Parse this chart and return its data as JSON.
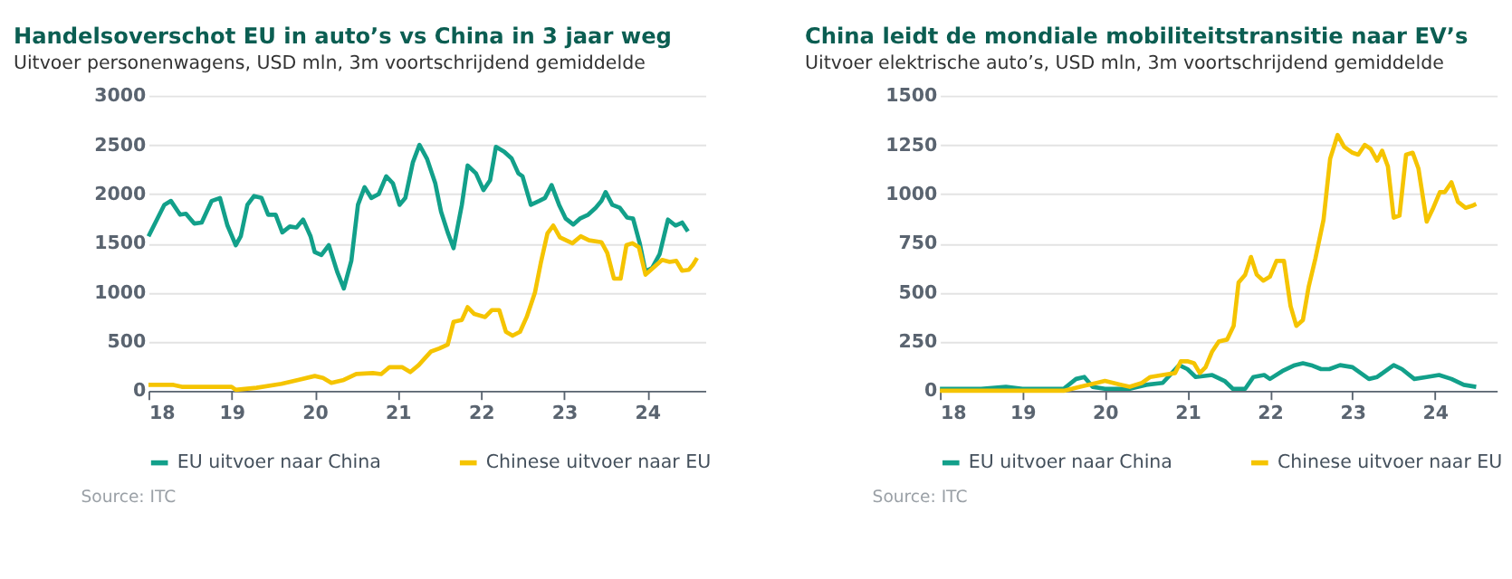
{
  "chart_data": [
    {
      "type": "line",
      "title": "Handelsoverschot EU in auto’s vs China in 3 jaar weg",
      "subtitle": "Uitvoer personenwagens, USD mln, 3m voortschrijdend gemiddelde",
      "xlim": [
        18,
        24.7
      ],
      "xticks": [
        18,
        19,
        20,
        21,
        22,
        23,
        24
      ],
      "ylim": [
        0,
        3000
      ],
      "yticks": [
        0,
        500,
        1000,
        1500,
        2000,
        2500,
        3000
      ],
      "grid": "y",
      "legend": "bottom",
      "annotations": [
        "Source: ITC"
      ],
      "series": [
        {
          "name": "EU uitvoer naar China",
          "color": "#12a08a",
          "x": [
            18.0,
            18.19,
            18.27,
            18.38,
            18.45,
            18.55,
            18.64,
            18.76,
            18.86,
            18.95,
            19.05,
            19.11,
            19.19,
            19.27,
            19.36,
            19.44,
            19.53,
            19.61,
            19.7,
            19.78,
            19.86,
            19.95,
            20.0,
            20.08,
            20.17,
            20.27,
            20.35,
            20.44,
            20.52,
            20.6,
            20.68,
            20.77,
            20.86,
            20.94,
            21.02,
            21.09,
            21.18,
            21.26,
            21.35,
            21.45,
            21.52,
            21.6,
            21.67,
            21.77,
            21.84,
            21.94,
            22.03,
            22.11,
            22.18,
            22.28,
            22.37,
            22.45,
            22.5,
            22.6,
            22.7,
            22.77,
            22.85,
            22.94,
            23.02,
            23.11,
            23.19,
            23.29,
            23.38,
            23.45,
            23.5,
            23.58,
            23.67,
            23.76,
            23.83,
            23.91,
            23.98,
            24.06,
            24.15,
            24.25,
            24.34,
            24.42,
            24.49
          ],
          "values": [
            1570,
            1890,
            1930,
            1790,
            1800,
            1700,
            1710,
            1930,
            1960,
            1680,
            1480,
            1570,
            1890,
            1980,
            1960,
            1790,
            1790,
            1610,
            1670,
            1660,
            1740,
            1570,
            1410,
            1380,
            1480,
            1210,
            1040,
            1320,
            1890,
            2070,
            1960,
            2000,
            2180,
            2110,
            1890,
            1960,
            2320,
            2500,
            2360,
            2110,
            1820,
            1610,
            1450,
            1890,
            2290,
            2210,
            2040,
            2140,
            2480,
            2430,
            2360,
            2210,
            2180,
            1890,
            1930,
            1960,
            2090,
            1890,
            1750,
            1690,
            1750,
            1790,
            1860,
            1930,
            2020,
            1890,
            1860,
            1760,
            1750,
            1500,
            1210,
            1250,
            1390,
            1740,
            1680,
            1710,
            1620
          ]
        },
        {
          "name": "Chinese uitvoer naar EU",
          "color": "#f5c400",
          "x": [
            18.0,
            18.3,
            18.4,
            18.6,
            19.0,
            19.05,
            19.3,
            19.6,
            19.8,
            20.0,
            20.1,
            20.2,
            20.35,
            20.5,
            20.7,
            20.8,
            20.9,
            21.05,
            21.15,
            21.25,
            21.4,
            21.5,
            21.6,
            21.67,
            21.77,
            21.84,
            21.92,
            22.05,
            22.13,
            22.22,
            22.3,
            22.38,
            22.47,
            22.55,
            22.65,
            22.72,
            22.8,
            22.87,
            22.95,
            23.1,
            23.2,
            23.3,
            23.45,
            23.52,
            23.6,
            23.68,
            23.75,
            23.82,
            23.9,
            23.98,
            24.1,
            24.18,
            24.27,
            24.35,
            24.42,
            24.5,
            24.55,
            24.6
          ],
          "values": [
            60,
            60,
            40,
            40,
            40,
            10,
            30,
            70,
            110,
            150,
            130,
            80,
            110,
            170,
            180,
            170,
            240,
            240,
            190,
            260,
            400,
            430,
            470,
            700,
            720,
            850,
            780,
            750,
            820,
            820,
            600,
            560,
            600,
            750,
            1000,
            1300,
            1600,
            1680,
            1560,
            1500,
            1570,
            1530,
            1510,
            1400,
            1140,
            1140,
            1480,
            1500,
            1460,
            1180,
            1270,
            1330,
            1310,
            1320,
            1220,
            1230,
            1280,
            1350
          ]
        }
      ]
    },
    {
      "type": "line",
      "title": "China leidt de mondiale mobiliteitstransitie naar EV’s",
      "subtitle": "Uitvoer elektrische auto’s, USD mln, 3m voortschrijdend gemiddelde",
      "xlim": [
        18,
        24.75
      ],
      "xticks": [
        18,
        19,
        20,
        21,
        22,
        23,
        24
      ],
      "ylim": [
        0,
        1500
      ],
      "yticks": [
        0,
        250,
        500,
        750,
        1000,
        1250,
        1500
      ],
      "grid": "y",
      "legend": "bottom",
      "annotations": [
        "Source: ITC"
      ],
      "series": [
        {
          "name": "EU uitvoer naar China",
          "color": "#12a08a",
          "x": [
            18.0,
            18.5,
            18.8,
            19.0,
            19.5,
            19.65,
            19.75,
            19.85,
            20.0,
            20.3,
            20.5,
            20.7,
            20.9,
            21.0,
            21.1,
            21.3,
            21.45,
            21.55,
            21.7,
            21.8,
            21.93,
            22.0,
            22.15,
            22.3,
            22.4,
            22.5,
            22.62,
            22.72,
            22.85,
            23.0,
            23.1,
            23.2,
            23.3,
            23.5,
            23.6,
            23.75,
            23.9,
            24.05,
            24.2,
            24.35,
            24.5
          ],
          "values": [
            10,
            10,
            20,
            10,
            10,
            60,
            70,
            20,
            10,
            10,
            30,
            40,
            130,
            110,
            70,
            80,
            50,
            10,
            10,
            70,
            80,
            60,
            100,
            130,
            140,
            130,
            110,
            110,
            130,
            120,
            90,
            60,
            70,
            130,
            110,
            60,
            70,
            80,
            60,
            30,
            20
          ]
        },
        {
          "name": "Chinese uitvoer naar EU",
          "color": "#f5c400",
          "x": [
            18.0,
            19.5,
            19.7,
            19.9,
            20.0,
            20.2,
            20.3,
            20.45,
            20.55,
            20.7,
            20.85,
            20.92,
            21.0,
            21.08,
            21.15,
            21.22,
            21.3,
            21.38,
            21.48,
            21.56,
            21.62,
            21.7,
            21.77,
            21.84,
            21.92,
            22.0,
            22.08,
            22.17,
            22.25,
            22.32,
            22.4,
            22.47,
            22.55,
            22.65,
            22.73,
            22.82,
            22.9,
            23.0,
            23.07,
            23.15,
            23.22,
            23.3,
            23.36,
            23.43,
            23.5,
            23.57,
            23.65,
            23.73,
            23.8,
            23.9,
            23.98,
            24.06,
            24.12,
            24.2,
            24.28,
            24.37,
            24.45,
            24.5
          ],
          "values": [
            0,
            0,
            20,
            40,
            50,
            30,
            20,
            40,
            70,
            80,
            90,
            150,
            150,
            140,
            90,
            120,
            200,
            250,
            260,
            330,
            550,
            590,
            680,
            590,
            560,
            580,
            660,
            660,
            430,
            330,
            360,
            530,
            670,
            870,
            1180,
            1300,
            1240,
            1210,
            1200,
            1250,
            1230,
            1170,
            1220,
            1140,
            880,
            890,
            1200,
            1210,
            1130,
            860,
            930,
            1010,
            1010,
            1060,
            960,
            930,
            940,
            950
          ]
        }
      ]
    }
  ]
}
